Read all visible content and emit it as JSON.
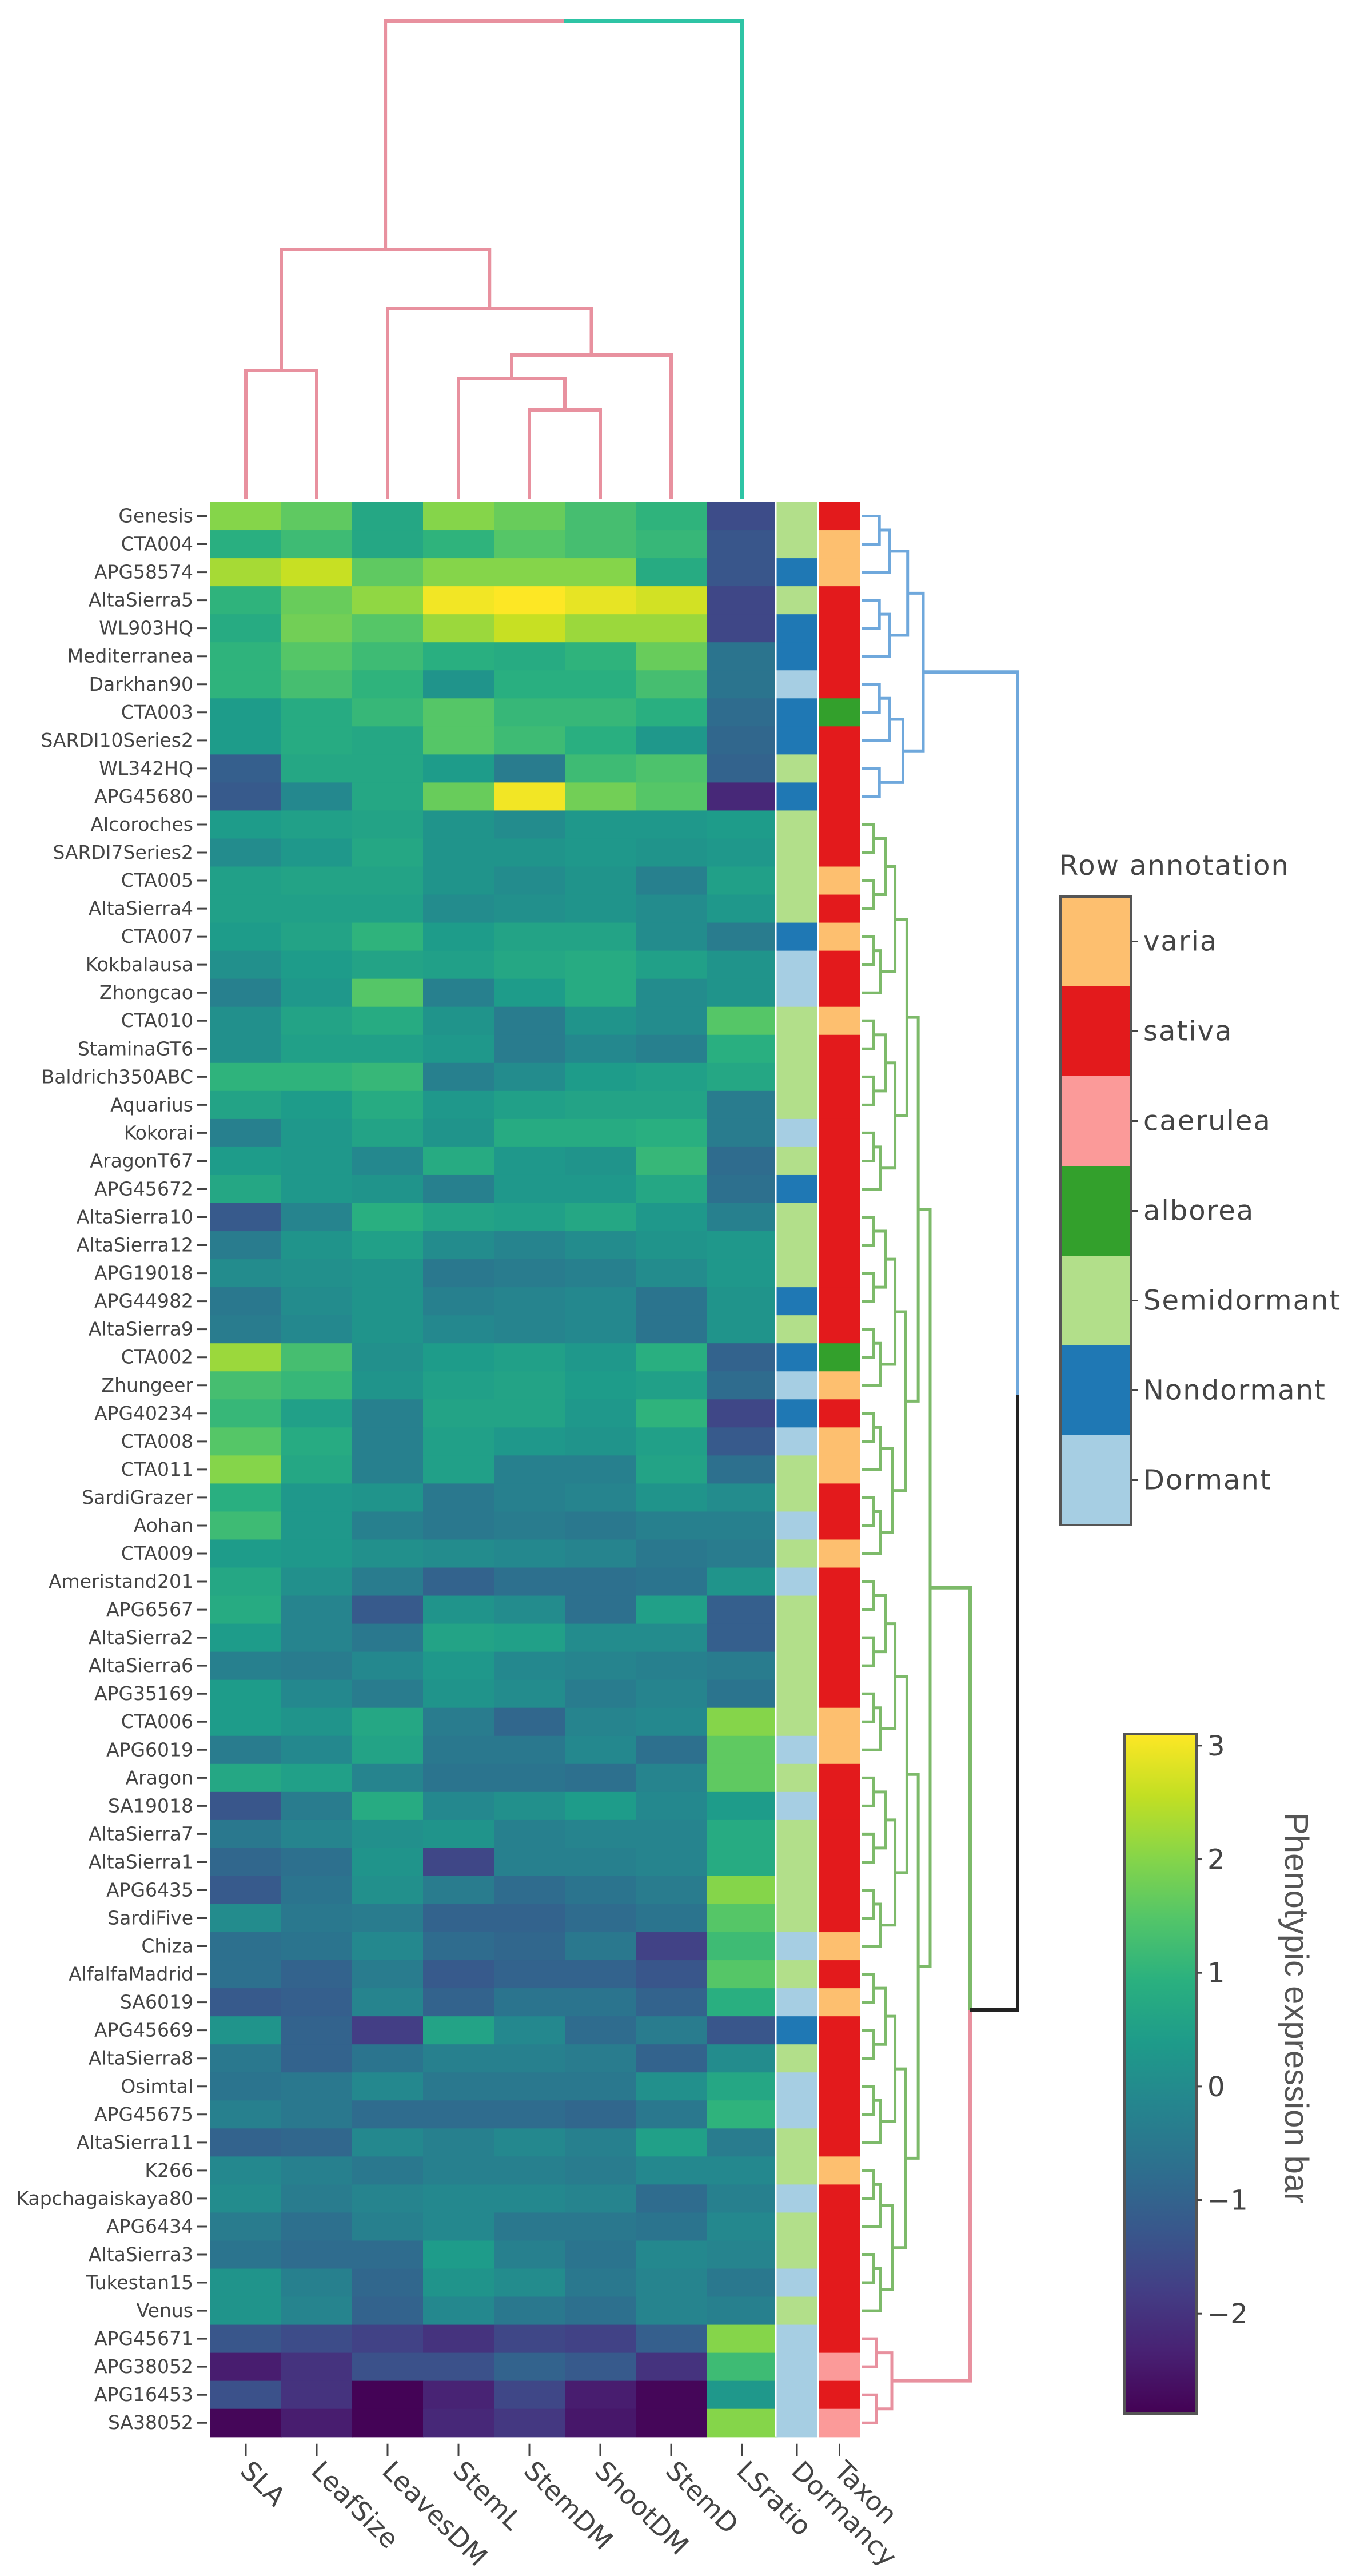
{
  "chart_data": {
    "type": "heatmap",
    "title": "",
    "columns": [
      "SLA",
      "LeafSize",
      "LeavesDM",
      "StemL",
      "StemDM",
      "ShootDM",
      "StemD",
      "LSratio"
    ],
    "annotation_columns": [
      "Dormancy",
      "Taxon"
    ],
    "rows": [
      "Genesis",
      "CTA004",
      "APG58574",
      "AltaSierra5",
      "WL903HQ",
      "Mediterranea",
      "Darkhan90",
      "CTA003",
      "SARDI10Series2",
      "WL342HQ",
      "APG45680",
      "Alcoroches",
      "SARDI7Series2",
      "CTA005",
      "AltaSierra4",
      "CTA007",
      "Kokbalausa",
      "Zhongcao",
      "CTA010",
      "StaminaGT6",
      "Baldrich350ABC",
      "Aquarius",
      "Kokorai",
      "AragonT67",
      "APG45672",
      "AltaSierra10",
      "AltaSierra12",
      "APG19018",
      "APG44982",
      "AltaSierra9",
      "CTA002",
      "Zhungeer",
      "APG40234",
      "CTA008",
      "CTA011",
      "SardiGrazer",
      "Aohan",
      "CTA009",
      "Ameristand201",
      "APG6567",
      "AltaSierra2",
      "AltaSierra6",
      "APG35169",
      "CTA006",
      "APG6019",
      "Aragon",
      "SA19018",
      "AltaSierra7",
      "AltaSierra1",
      "APG6435",
      "SardiFive",
      "Chiza",
      "AlfalfaMadrid",
      "SA6019",
      "APG45669",
      "AltaSierra8",
      "Osimtal",
      "APG45675",
      "AltaSierra11",
      "K266",
      "Kapchagaiskaya80",
      "APG6434",
      "AltaSierra3",
      "Tukestan15",
      "Venus",
      "APG45671",
      "APG38052",
      "APG16453",
      "SA38052"
    ],
    "values": [
      [
        2.0,
        1.6,
        0.7,
        2.0,
        1.7,
        1.3,
        1.0,
        -1.5
      ],
      [
        0.9,
        1.2,
        0.7,
        1.0,
        1.5,
        1.3,
        1.1,
        -1.3
      ],
      [
        2.3,
        2.6,
        1.6,
        2.0,
        2.0,
        2.0,
        0.8,
        -1.3
      ],
      [
        1.0,
        1.7,
        2.1,
        3.0,
        3.1,
        2.9,
        2.7,
        -1.6
      ],
      [
        0.8,
        1.8,
        1.5,
        2.2,
        2.6,
        2.2,
        2.2,
        -1.6
      ],
      [
        1.0,
        1.5,
        1.2,
        0.9,
        0.8,
        1.0,
        1.7,
        -0.6
      ],
      [
        1.0,
        1.3,
        1.0,
        0.2,
        0.9,
        0.9,
        1.3,
        -0.6
      ],
      [
        0.4,
        0.8,
        1.1,
        1.5,
        1.1,
        1.1,
        0.9,
        -0.8
      ],
      [
        0.4,
        0.8,
        0.7,
        1.5,
        1.2,
        0.9,
        0.3,
        -0.9
      ],
      [
        -1.1,
        0.7,
        0.7,
        0.4,
        -0.4,
        1.2,
        1.4,
        -1.0
      ],
      [
        -1.2,
        -0.1,
        0.7,
        1.7,
        3.0,
        1.8,
        1.5,
        -2.2
      ],
      [
        0.4,
        0.5,
        0.6,
        0.2,
        0.0,
        0.3,
        0.3,
        0.4
      ],
      [
        0.0,
        0.3,
        0.7,
        0.2,
        0.2,
        0.3,
        0.2,
        0.3
      ],
      [
        0.5,
        0.6,
        0.6,
        0.2,
        0.0,
        0.2,
        -0.3,
        0.5
      ],
      [
        0.5,
        0.5,
        0.5,
        0.0,
        0.1,
        0.2,
        0.0,
        0.3
      ],
      [
        0.4,
        0.6,
        1.0,
        0.4,
        0.6,
        0.6,
        0.0,
        -0.4
      ],
      [
        0.1,
        0.4,
        0.6,
        0.5,
        0.7,
        0.8,
        0.5,
        0.2
      ],
      [
        -0.3,
        0.3,
        1.5,
        -0.3,
        0.4,
        0.8,
        0.0,
        0.2
      ],
      [
        0.1,
        0.6,
        0.8,
        0.2,
        -0.4,
        0.2,
        0.0,
        1.5
      ],
      [
        0.1,
        0.5,
        0.5,
        0.3,
        -0.4,
        -0.1,
        -0.3,
        0.9
      ],
      [
        1.0,
        1.0,
        1.1,
        -0.3,
        0.0,
        0.4,
        0.5,
        0.7
      ],
      [
        0.6,
        0.4,
        0.8,
        0.3,
        0.5,
        0.6,
        0.6,
        -0.4
      ],
      [
        -0.3,
        0.3,
        0.6,
        0.2,
        0.8,
        0.8,
        0.9,
        -0.4
      ],
      [
        0.4,
        0.3,
        -0.1,
        0.8,
        0.3,
        0.2,
        1.1,
        -0.8
      ],
      [
        0.7,
        0.3,
        0.2,
        -0.3,
        0.3,
        0.3,
        0.7,
        -0.7
      ],
      [
        -1.2,
        -0.2,
        0.9,
        0.6,
        0.5,
        0.7,
        0.3,
        -0.3
      ],
      [
        -0.4,
        0.2,
        0.5,
        0.0,
        -0.2,
        0.0,
        0.2,
        0.3
      ],
      [
        0.0,
        0.1,
        0.2,
        -0.5,
        -0.4,
        -0.3,
        0.0,
        0.3
      ],
      [
        -0.5,
        0.0,
        0.2,
        -0.3,
        -0.2,
        -0.1,
        -0.6,
        0.2
      ],
      [
        -0.4,
        -0.1,
        0.2,
        -0.1,
        -0.2,
        -0.1,
        -0.6,
        0.2
      ],
      [
        2.2,
        1.3,
        0.1,
        0.4,
        0.5,
        0.3,
        0.9,
        -1.0
      ],
      [
        1.3,
        1.1,
        0.2,
        0.5,
        0.6,
        0.4,
        0.5,
        -0.8
      ],
      [
        1.1,
        0.5,
        -0.3,
        0.6,
        0.6,
        0.3,
        1.0,
        -1.6
      ],
      [
        1.5,
        0.8,
        -0.3,
        0.5,
        0.3,
        0.2,
        0.5,
        -1.2
      ],
      [
        2.0,
        0.7,
        -0.3,
        0.5,
        -0.3,
        -0.3,
        0.6,
        -0.7
      ],
      [
        0.9,
        0.3,
        0.2,
        -0.5,
        -0.3,
        -0.2,
        0.2,
        0.0
      ],
      [
        1.2,
        0.3,
        -0.3,
        -0.5,
        -0.4,
        -0.5,
        -0.3,
        -0.3
      ],
      [
        0.4,
        0.3,
        0.1,
        0.0,
        -0.1,
        -0.2,
        -0.5,
        -0.4
      ],
      [
        0.7,
        0.1,
        -0.4,
        -1.0,
        -0.7,
        -0.7,
        -0.6,
        0.2
      ],
      [
        0.8,
        -0.2,
        -1.2,
        0.2,
        0.0,
        -0.7,
        0.5,
        -1.1
      ],
      [
        0.4,
        -0.2,
        -0.5,
        0.6,
        0.5,
        0.0,
        0.0,
        -1.1
      ],
      [
        -0.3,
        -0.4,
        -0.1,
        0.3,
        -0.1,
        -0.2,
        -0.3,
        -0.4
      ],
      [
        0.4,
        -0.1,
        -0.4,
        0.2,
        0.0,
        -0.4,
        -0.2,
        -0.6
      ],
      [
        0.4,
        0.2,
        0.7,
        -0.4,
        -0.9,
        -0.2,
        -0.1,
        2.0
      ],
      [
        -0.4,
        -0.1,
        0.6,
        -0.5,
        -0.5,
        -0.1,
        -0.7,
        1.6
      ],
      [
        0.7,
        0.5,
        -0.2,
        -0.6,
        -0.6,
        -0.7,
        -0.2,
        1.6
      ],
      [
        -1.3,
        -0.4,
        0.8,
        -0.1,
        0.1,
        0.4,
        -0.1,
        0.4
      ],
      [
        -0.5,
        -0.2,
        0.1,
        0.2,
        -0.3,
        -0.2,
        -0.2,
        0.8
      ],
      [
        -0.9,
        -0.7,
        0.2,
        -1.6,
        -0.3,
        -0.3,
        -0.2,
        0.8
      ],
      [
        -1.2,
        -0.6,
        0.1,
        -0.4,
        -0.8,
        -0.6,
        -0.4,
        2.0
      ],
      [
        0.0,
        -0.5,
        -0.4,
        -1.0,
        -1.0,
        -0.8,
        -0.6,
        1.5
      ],
      [
        -0.7,
        -0.6,
        -0.1,
        -0.8,
        -0.9,
        -0.5,
        -1.7,
        1.2
      ],
      [
        -0.7,
        -1.0,
        -0.4,
        -1.2,
        -1.0,
        -1.0,
        -1.3,
        1.5
      ],
      [
        -1.2,
        -1.1,
        -0.2,
        -1.0,
        -0.6,
        -0.6,
        -1.0,
        0.9
      ],
      [
        0.2,
        -1.0,
        -1.8,
        0.6,
        -0.1,
        -0.8,
        -0.4,
        -1.3
      ],
      [
        -0.5,
        -1.0,
        -0.6,
        -0.3,
        -0.3,
        -0.4,
        -1.0,
        0.0
      ],
      [
        -0.6,
        -0.5,
        -0.1,
        -0.5,
        -0.5,
        -0.5,
        0.1,
        0.7
      ],
      [
        -0.3,
        -0.5,
        -0.8,
        -0.8,
        -0.8,
        -0.9,
        -0.5,
        1.0
      ],
      [
        -1.0,
        -0.9,
        -0.1,
        -0.3,
        -0.1,
        -0.3,
        0.5,
        -0.4
      ],
      [
        -0.1,
        -0.3,
        -0.5,
        -0.3,
        -0.3,
        -0.4,
        -0.1,
        -0.1
      ],
      [
        0.0,
        -0.4,
        -0.2,
        -0.1,
        -0.1,
        -0.2,
        -0.8,
        -0.3
      ],
      [
        -0.4,
        -0.7,
        -0.3,
        -0.1,
        -0.5,
        -0.5,
        -0.6,
        -0.1
      ],
      [
        -0.6,
        -0.8,
        -0.8,
        0.4,
        -0.3,
        -0.6,
        -0.1,
        -0.2
      ],
      [
        0.2,
        -0.3,
        -0.9,
        0.2,
        0.0,
        -0.5,
        -0.2,
        -0.5
      ],
      [
        0.2,
        -0.2,
        -1.0,
        -0.1,
        -0.5,
        -0.7,
        -0.2,
        -0.3
      ],
      [
        -1.3,
        -1.5,
        -1.7,
        -2.0,
        -1.6,
        -1.7,
        -1.1,
        2.0
      ],
      [
        -2.4,
        -2.0,
        -1.4,
        -1.4,
        -1.0,
        -1.2,
        -2.0,
        1.2
      ],
      [
        -1.4,
        -2.0,
        -2.85,
        -2.3,
        -1.6,
        -2.4,
        -2.8,
        0.3
      ],
      [
        -2.8,
        -2.4,
        -2.85,
        -2.2,
        -1.9,
        -2.5,
        -2.8,
        2.0
      ]
    ],
    "dormancy": [
      "Semidormant",
      "Semidormant",
      "Nondormant",
      "Semidormant",
      "Nondormant",
      "Nondormant",
      "Dormant",
      "Nondormant",
      "Nondormant",
      "Semidormant",
      "Nondormant",
      "Semidormant",
      "Semidormant",
      "Semidormant",
      "Semidormant",
      "Nondormant",
      "Dormant",
      "Dormant",
      "Semidormant",
      "Semidormant",
      "Semidormant",
      "Semidormant",
      "Dormant",
      "Semidormant",
      "Nondormant",
      "Semidormant",
      "Semidormant",
      "Semidormant",
      "Nondormant",
      "Semidormant",
      "Nondormant",
      "Dormant",
      "Nondormant",
      "Dormant",
      "Semidormant",
      "Semidormant",
      "Dormant",
      "Semidormant",
      "Dormant",
      "Semidormant",
      "Semidormant",
      "Semidormant",
      "Semidormant",
      "Semidormant",
      "Dormant",
      "Semidormant",
      "Dormant",
      "Semidormant",
      "Semidormant",
      "Semidormant",
      "Semidormant",
      "Dormant",
      "Semidormant",
      "Dormant",
      "Nondormant",
      "Semidormant",
      "Dormant",
      "Dormant",
      "Semidormant",
      "Semidormant",
      "Dormant",
      "Semidormant",
      "Semidormant",
      "Dormant",
      "Semidormant",
      "Dormant",
      "Dormant",
      "Dormant",
      "Dormant"
    ],
    "taxon": [
      "sativa",
      "varia",
      "varia",
      "sativa",
      "sativa",
      "sativa",
      "sativa",
      "alborea",
      "sativa",
      "sativa",
      "sativa",
      "sativa",
      "sativa",
      "varia",
      "sativa",
      "varia",
      "sativa",
      "sativa",
      "varia",
      "sativa",
      "sativa",
      "sativa",
      "sativa",
      "sativa",
      "sativa",
      "sativa",
      "sativa",
      "sativa",
      "sativa",
      "sativa",
      "alborea",
      "varia",
      "sativa",
      "varia",
      "varia",
      "sativa",
      "sativa",
      "varia",
      "sativa",
      "sativa",
      "sativa",
      "sativa",
      "sativa",
      "varia",
      "varia",
      "sativa",
      "sativa",
      "sativa",
      "sativa",
      "sativa",
      "sativa",
      "varia",
      "sativa",
      "varia",
      "sativa",
      "sativa",
      "sativa",
      "sativa",
      "sativa",
      "varia",
      "sativa",
      "sativa",
      "sativa",
      "sativa",
      "sativa",
      "sativa",
      "caerulea",
      "sativa",
      "caerulea"
    ],
    "legend": {
      "title": "Row annotation",
      "placement": "right",
      "entries": [
        {
          "label": "varia",
          "color": "#fdbf6f"
        },
        {
          "label": "sativa",
          "color": "#e31a1c"
        },
        {
          "label": "caerulea",
          "color": "#fb9a99"
        },
        {
          "label": "alborea",
          "color": "#33a02c"
        },
        {
          "label": "Semidormant",
          "color": "#b2df8a"
        },
        {
          "label": "Nondormant",
          "color": "#1f78b4"
        },
        {
          "label": "Dormant",
          "color": "#a6cee3"
        }
      ]
    },
    "colorbar": {
      "label": "Phenotypic expression bar",
      "colormap": "viridis",
      "range": [
        -2.88,
        3.1
      ],
      "ticks": [
        3,
        2,
        1,
        0,
        -1,
        -2
      ],
      "tick_labels": [
        "3",
        "2",
        "1",
        "0",
        "−1",
        "−2"
      ]
    },
    "dendrogram_colors": {
      "col": "#e8919f",
      "col_root_right": "#2ec4a5",
      "row_cluster1": "#6fa8dc",
      "row_cluster2": "#7dba6a",
      "row_cluster3": "#e8919f",
      "row_root": "#222222"
    }
  }
}
